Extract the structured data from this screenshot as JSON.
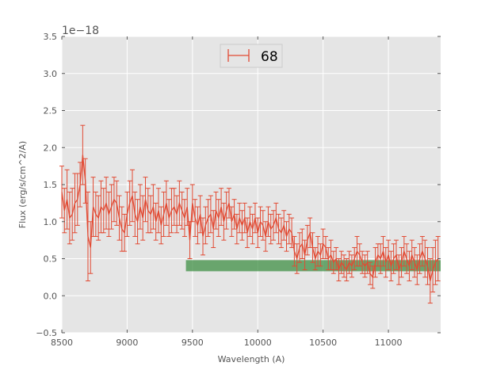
{
  "chart_data": {
    "type": "line",
    "xlabel": "Wavelength (A)",
    "ylabel": "Flux (erg/s/cm^2/A)",
    "y_offset_label": "1e−18",
    "xlim": [
      8500,
      11400
    ],
    "ylim": [
      -0.5,
      3.5
    ],
    "x_ticks": [
      8500,
      9000,
      9500,
      10000,
      10500,
      11000
    ],
    "x_tick_labels": [
      "8500",
      "9000",
      "9500",
      "10000",
      "10500",
      "11000"
    ],
    "y_ticks": [
      -0.5,
      0.0,
      0.5,
      1.0,
      1.5,
      2.0,
      2.5,
      3.0,
      3.5
    ],
    "y_tick_labels": [
      "−0.5",
      "0.0",
      "0.5",
      "1.0",
      "1.5",
      "2.0",
      "2.5",
      "3.0",
      "3.5"
    ],
    "grid": true,
    "legend_position": "top-center",
    "colors": {
      "series": "#e24a33",
      "band": "#348a3a",
      "plot_bg": "#e5e5e5",
      "grid": "#ffffff"
    },
    "series": [
      {
        "name": "68",
        "style": "line-with-errorbars",
        "x": [
          8500,
          8520,
          8540,
          8560,
          8580,
          8600,
          8620,
          8640,
          8660,
          8680,
          8700,
          8720,
          8740,
          8760,
          8780,
          8800,
          8820,
          8840,
          8860,
          8880,
          8900,
          8920,
          8940,
          8960,
          8980,
          9000,
          9020,
          9040,
          9060,
          9080,
          9100,
          9120,
          9140,
          9160,
          9180,
          9200,
          9220,
          9240,
          9260,
          9280,
          9300,
          9320,
          9340,
          9360,
          9380,
          9400,
          9420,
          9440,
          9460,
          9480,
          9500,
          9520,
          9540,
          9560,
          9580,
          9600,
          9620,
          9640,
          9660,
          9680,
          9700,
          9720,
          9740,
          9760,
          9780,
          9800,
          9820,
          9840,
          9860,
          9880,
          9900,
          9920,
          9940,
          9960,
          9980,
          10000,
          10020,
          10040,
          10060,
          10080,
          10100,
          10120,
          10140,
          10160,
          10180,
          10200,
          10220,
          10240,
          10260,
          10280,
          10300,
          10320,
          10340,
          10360,
          10380,
          10400,
          10420,
          10440,
          10460,
          10480,
          10500,
          10520,
          10540,
          10560,
          10580,
          10600,
          10620,
          10640,
          10660,
          10680,
          10700,
          10720,
          10740,
          10760,
          10780,
          10800,
          10820,
          10840,
          10860,
          10880,
          10900,
          10920,
          10940,
          10960,
          10980,
          11000,
          11020,
          11040,
          11060,
          11080,
          11100,
          11120,
          11140,
          11160,
          11180,
          11200,
          11220,
          11240,
          11260,
          11280,
          11300,
          11320,
          11340,
          11360,
          11380
        ],
        "y": [
          1.4,
          1.15,
          1.3,
          1.05,
          1.1,
          1.25,
          1.3,
          1.5,
          1.9,
          1.55,
          0.8,
          0.65,
          1.2,
          1.1,
          1.05,
          1.2,
          1.15,
          1.25,
          1.1,
          1.2,
          1.3,
          1.25,
          1.05,
          0.9,
          0.85,
          1.1,
          1.25,
          1.35,
          1.1,
          1.0,
          1.2,
          1.05,
          1.3,
          1.15,
          1.1,
          1.2,
          1.0,
          1.15,
          0.95,
          1.1,
          1.25,
          1.05,
          1.15,
          1.2,
          1.1,
          1.25,
          1.15,
          1.05,
          1.2,
          0.75,
          1.25,
          1.05,
          0.95,
          1.1,
          0.8,
          0.95,
          1.05,
          1.1,
          0.9,
          1.15,
          1.05,
          1.2,
          1.0,
          1.15,
          1.25,
          1.0,
          1.1,
          0.9,
          1.05,
          0.95,
          1.05,
          0.85,
          1.0,
          0.9,
          1.05,
          0.85,
          1.0,
          0.95,
          0.8,
          1.0,
          0.9,
          0.95,
          1.05,
          0.9,
          0.85,
          0.95,
          0.8,
          0.9,
          0.85,
          0.6,
          0.5,
          0.65,
          0.7,
          0.55,
          0.75,
          0.85,
          0.65,
          0.5,
          0.6,
          0.55,
          0.7,
          0.65,
          0.5,
          0.55,
          0.45,
          0.5,
          0.35,
          0.45,
          0.4,
          0.35,
          0.45,
          0.4,
          0.5,
          0.6,
          0.55,
          0.45,
          0.4,
          0.45,
          0.3,
          0.25,
          0.45,
          0.55,
          0.5,
          0.6,
          0.45,
          0.55,
          0.4,
          0.5,
          0.55,
          0.35,
          0.45,
          0.6,
          0.5,
          0.4,
          0.55,
          0.45,
          0.35,
          0.5,
          0.6,
          0.5,
          0.4,
          0.2,
          0.35,
          0.45,
          0.5
        ],
        "yerr": [
          0.35,
          0.3,
          0.4,
          0.35,
          0.35,
          0.4,
          0.35,
          0.3,
          0.4,
          0.3,
          0.6,
          0.35,
          0.4,
          0.3,
          0.3,
          0.35,
          0.3,
          0.35,
          0.3,
          0.3,
          0.3,
          0.3,
          0.3,
          0.3,
          0.25,
          0.3,
          0.3,
          0.35,
          0.3,
          0.3,
          0.3,
          0.3,
          0.3,
          0.3,
          0.25,
          0.3,
          0.25,
          0.3,
          0.25,
          0.3,
          0.3,
          0.25,
          0.3,
          0.25,
          0.25,
          0.3,
          0.25,
          0.25,
          0.25,
          0.25,
          0.25,
          0.25,
          0.25,
          0.25,
          0.25,
          0.25,
          0.25,
          0.25,
          0.25,
          0.25,
          0.25,
          0.25,
          0.25,
          0.25,
          0.2,
          0.2,
          0.2,
          0.2,
          0.2,
          0.2,
          0.2,
          0.2,
          0.2,
          0.2,
          0.2,
          0.2,
          0.2,
          0.2,
          0.2,
          0.2,
          0.2,
          0.2,
          0.2,
          0.2,
          0.2,
          0.2,
          0.2,
          0.2,
          0.2,
          0.2,
          0.2,
          0.2,
          0.2,
          0.2,
          0.2,
          0.2,
          0.2,
          0.15,
          0.2,
          0.15,
          0.2,
          0.15,
          0.15,
          0.2,
          0.15,
          0.15,
          0.15,
          0.15,
          0.15,
          0.15,
          0.15,
          0.15,
          0.15,
          0.2,
          0.15,
          0.15,
          0.15,
          0.15,
          0.15,
          0.15,
          0.2,
          0.15,
          0.2,
          0.2,
          0.2,
          0.2,
          0.2,
          0.2,
          0.2,
          0.2,
          0.2,
          0.2,
          0.2,
          0.2,
          0.2,
          0.2,
          0.2,
          0.2,
          0.2,
          0.25,
          0.25,
          0.3,
          0.3,
          0.3,
          0.3
        ]
      }
    ],
    "band": {
      "x": [
        9450,
        11400
      ],
      "y": [
        0.33,
        0.48
      ]
    }
  }
}
